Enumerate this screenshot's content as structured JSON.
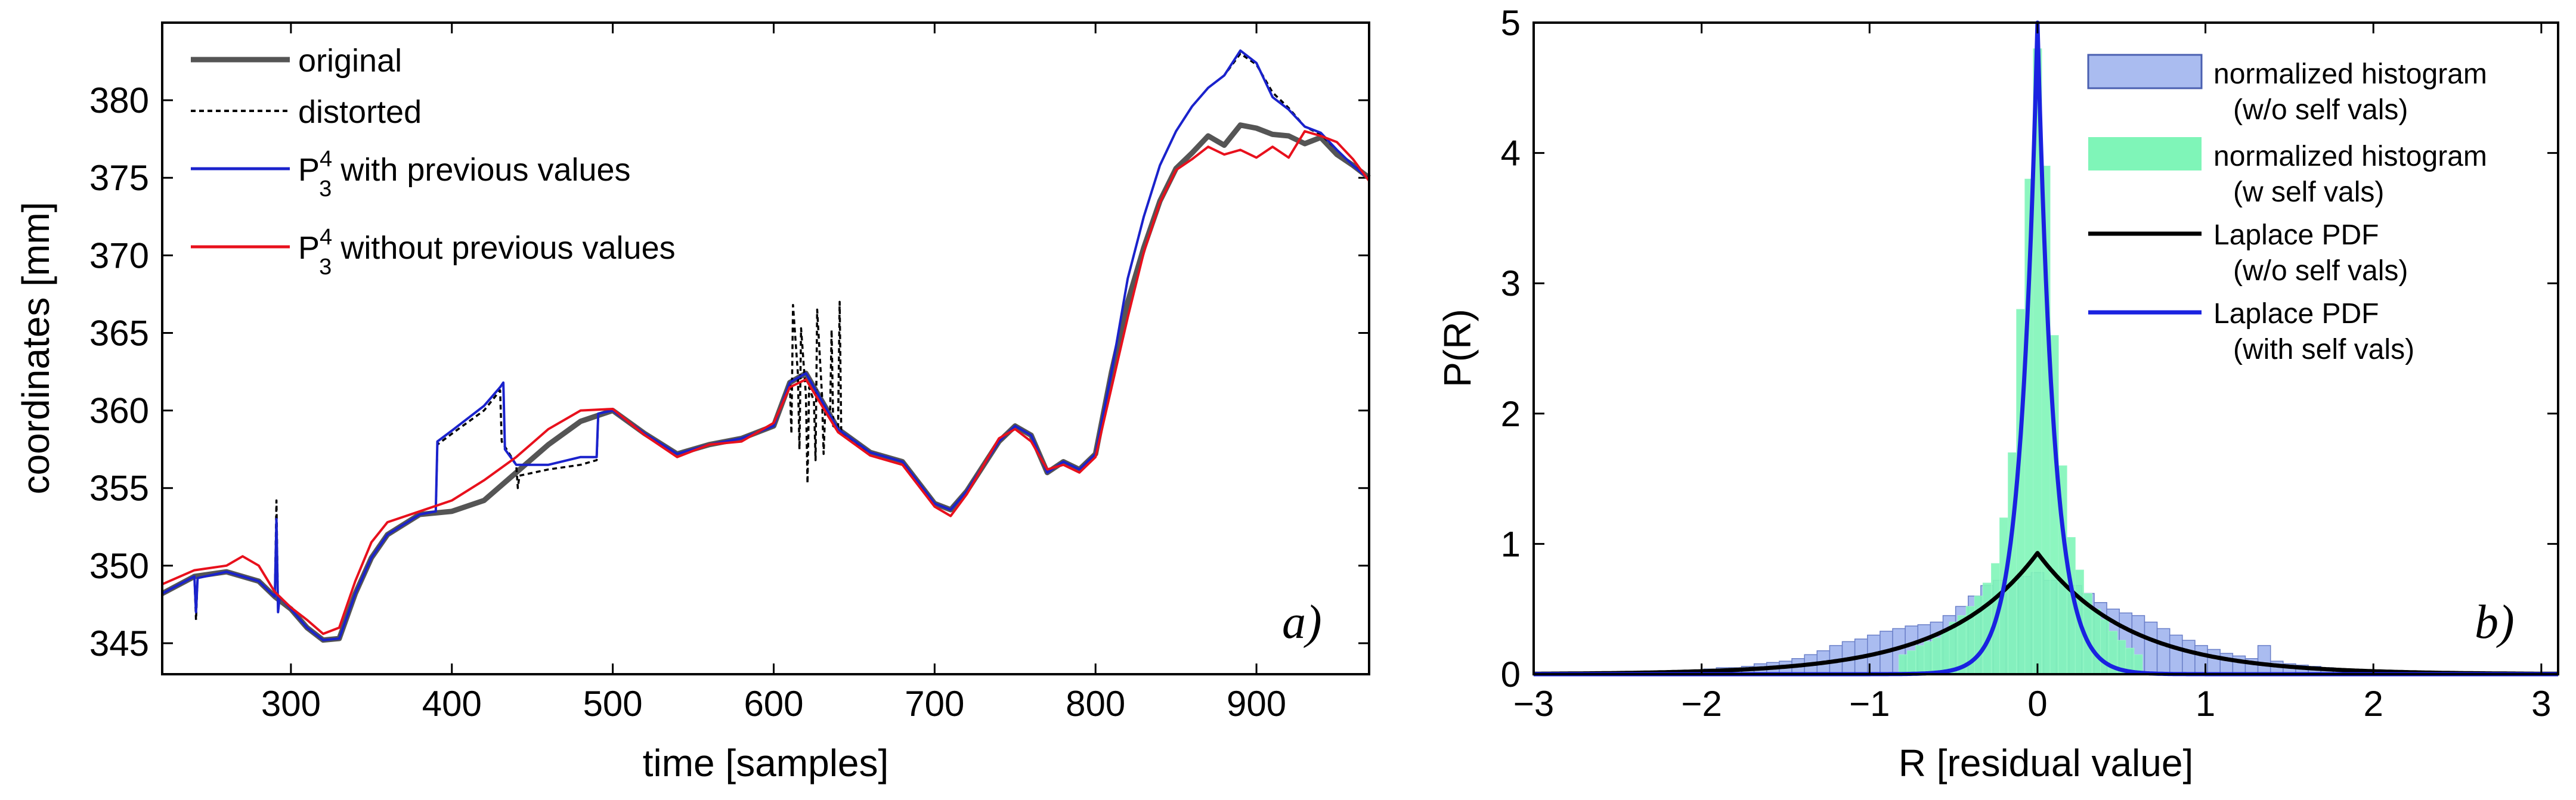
{
  "chart_data": [
    {
      "type": "line",
      "xlabel": "time [samples]",
      "ylabel": "coordinates [mm]",
      "xlim": [
        220,
        970
      ],
      "ylim": [
        343,
        385
      ],
      "xticks": [
        300,
        400,
        500,
        600,
        700,
        800,
        900
      ],
      "yticks": [
        345,
        350,
        355,
        360,
        365,
        370,
        375,
        380
      ],
      "panel_label": "a)",
      "legend_position": "top-left",
      "legend": [
        {
          "label": "original",
          "sup": "",
          "sub": ""
        },
        {
          "label": "distorted",
          "sup": "",
          "sub": ""
        },
        {
          "label": "P",
          "sup": "4",
          "sub": "3",
          "suffix": " with previous values"
        },
        {
          "label": "P",
          "sup": "4",
          "sub": "3",
          "suffix": " without previous values"
        }
      ],
      "series": [
        {
          "name": "original",
          "color": "#555555",
          "style": "solid",
          "x": [
            220,
            240,
            260,
            280,
            290,
            300,
            310,
            320,
            330,
            340,
            350,
            360,
            380,
            400,
            420,
            440,
            460,
            480,
            500,
            520,
            540,
            560,
            580,
            600,
            610,
            620,
            630,
            640,
            660,
            680,
            700,
            710,
            720,
            740,
            750,
            760,
            770,
            780,
            790,
            800,
            810,
            820,
            830,
            840,
            850,
            860,
            870,
            880,
            890,
            900,
            910,
            920,
            930,
            940,
            950,
            960,
            970
          ],
          "y": [
            348.2,
            349.3,
            349.6,
            349.0,
            348.0,
            347.2,
            346.0,
            345.2,
            345.3,
            348.2,
            350.5,
            352.0,
            353.3,
            353.5,
            354.2,
            356.0,
            357.8,
            359.3,
            360.0,
            358.5,
            357.2,
            357.8,
            358.2,
            359.0,
            361.8,
            362.4,
            360.6,
            358.8,
            357.3,
            356.7,
            354.0,
            353.6,
            354.8,
            358.0,
            359.0,
            358.4,
            356.0,
            356.7,
            356.2,
            357.2,
            362.5,
            367.0,
            370.5,
            373.5,
            375.6,
            376.6,
            377.7,
            377.1,
            378.4,
            378.2,
            377.8,
            377.7,
            377.2,
            377.6,
            376.5,
            375.8,
            375.0
          ]
        },
        {
          "name": "distorted",
          "color": "#000000",
          "style": "dashed",
          "x": [
            220,
            240,
            241,
            242,
            260,
            280,
            290,
            291,
            292,
            293,
            300,
            310,
            320,
            330,
            340,
            350,
            360,
            380,
            390,
            391,
            400,
            420,
            430,
            431,
            440,
            441,
            442,
            460,
            480,
            490,
            491,
            500,
            520,
            540,
            560,
            580,
            600,
            610,
            611,
            612,
            615,
            616,
            617,
            620,
            621,
            622,
            625,
            626,
            627,
            630,
            631,
            632,
            635,
            636,
            637,
            640,
            641,
            642,
            660,
            680,
            700,
            710,
            720,
            740,
            750,
            760,
            770,
            780,
            790,
            800,
            810,
            820,
            830,
            840,
            850,
            860,
            870,
            880,
            890,
            900,
            910,
            920,
            930,
            940,
            950,
            960,
            970
          ],
          "y": [
            348.2,
            349.3,
            346.5,
            349.2,
            349.6,
            349.0,
            348.0,
            354.2,
            347.0,
            348.0,
            347.2,
            346.0,
            345.2,
            345.3,
            348.2,
            350.5,
            352.0,
            353.3,
            353.5,
            357.8,
            358.5,
            360.0,
            361.3,
            358.0,
            356.5,
            355.0,
            355.8,
            356.2,
            356.5,
            356.8,
            359.8,
            360.0,
            358.5,
            357.2,
            357.8,
            358.2,
            359.0,
            361.8,
            358.5,
            366.8,
            362.4,
            357.5,
            365.3,
            361.0,
            355.3,
            361.5,
            360.6,
            356.8,
            366.5,
            361.0,
            357.2,
            360.0,
            359.4,
            365.2,
            359.0,
            358.8,
            367.0,
            358.5,
            357.3,
            356.7,
            354.0,
            353.6,
            354.8,
            358.0,
            359.0,
            358.4,
            356.0,
            356.7,
            356.2,
            357.2,
            362.5,
            368.5,
            372.5,
            375.8,
            378.0,
            379.6,
            380.8,
            381.6,
            383.0,
            382.3,
            380.5,
            379.5,
            378.3,
            377.8,
            376.8,
            375.8,
            375.0
          ]
        },
        {
          "name": "P34 with previous values",
          "color": "#1a22cc",
          "style": "solid",
          "x": [
            220,
            240,
            241,
            242,
            260,
            280,
            290,
            291,
            292,
            293,
            300,
            310,
            320,
            330,
            340,
            350,
            360,
            380,
            390,
            391,
            400,
            420,
            430,
            432,
            433,
            440,
            460,
            480,
            490,
            491,
            500,
            520,
            540,
            560,
            580,
            600,
            610,
            620,
            630,
            640,
            660,
            680,
            700,
            710,
            720,
            740,
            750,
            760,
            770,
            780,
            790,
            800,
            810,
            820,
            830,
            840,
            850,
            860,
            870,
            880,
            890,
            900,
            910,
            920,
            930,
            940,
            950,
            960,
            970
          ],
          "y": [
            348.2,
            349.3,
            347.0,
            349.2,
            349.6,
            349.0,
            348.0,
            353.0,
            347.0,
            348.0,
            347.2,
            346.0,
            345.2,
            345.3,
            348.2,
            350.5,
            352.0,
            353.3,
            353.5,
            358.0,
            358.7,
            360.3,
            361.5,
            361.8,
            357.5,
            356.5,
            356.5,
            357.0,
            357.0,
            359.8,
            360.0,
            358.5,
            357.2,
            357.8,
            358.2,
            359.0,
            361.8,
            362.4,
            360.6,
            358.8,
            357.3,
            356.7,
            354.0,
            353.6,
            354.8,
            358.0,
            359.0,
            358.4,
            356.0,
            356.7,
            356.2,
            357.2,
            362.5,
            368.5,
            372.5,
            375.8,
            378.0,
            379.6,
            380.8,
            381.6,
            383.2,
            382.4,
            380.2,
            379.4,
            378.3,
            377.9,
            376.8,
            375.8,
            374.9
          ]
        },
        {
          "name": "P34 without previous values",
          "color": "#e8101c",
          "style": "solid",
          "x": [
            220,
            240,
            260,
            270,
            280,
            290,
            300,
            310,
            320,
            330,
            340,
            350,
            360,
            380,
            400,
            420,
            440,
            460,
            480,
            500,
            520,
            540,
            560,
            580,
            600,
            610,
            620,
            630,
            640,
            660,
            680,
            700,
            710,
            720,
            740,
            750,
            760,
            770,
            780,
            790,
            800,
            810,
            820,
            830,
            840,
            850,
            860,
            870,
            880,
            890,
            900,
            910,
            920,
            930,
            940,
            950,
            960,
            970
          ],
          "y": [
            348.8,
            349.7,
            350.0,
            350.6,
            350.0,
            348.3,
            347.3,
            346.5,
            345.6,
            346.0,
            349.0,
            351.5,
            352.8,
            353.5,
            354.2,
            355.5,
            357.0,
            358.8,
            360.0,
            360.1,
            358.4,
            357.0,
            357.8,
            358.0,
            359.2,
            361.5,
            362.0,
            360.3,
            358.6,
            357.1,
            356.5,
            353.8,
            353.2,
            354.6,
            358.2,
            358.8,
            358.0,
            356.2,
            356.5,
            356.0,
            357.0,
            361.5,
            366.0,
            370.2,
            373.4,
            375.5,
            376.2,
            377.0,
            376.5,
            376.8,
            376.3,
            377.0,
            376.3,
            378.0,
            377.7,
            377.3,
            376.2,
            374.8
          ]
        }
      ]
    },
    {
      "type": "histogram",
      "xlabel": "R [residual value]",
      "ylabel": "P(R)",
      "xlim": [
        -3,
        3.1
      ],
      "ylim": [
        0,
        5
      ],
      "xticks": [
        -3,
        -2,
        -1,
        0,
        1,
        2,
        3
      ],
      "yticks": [
        0,
        1,
        2,
        3,
        4,
        5
      ],
      "panel_label": "b)",
      "legend_position": "top-right",
      "legend": [
        {
          "line1": "normalized histogram",
          "line2": "(w/o self vals)",
          "kind": "patch",
          "color": "#aabcf0",
          "edge": "#4a5fb0"
        },
        {
          "line1": "normalized histogram",
          "line2": "(w self vals)",
          "kind": "patch",
          "color": "#7ff5b8",
          "edge": "#7ff5b8"
        },
        {
          "line1": "Laplace PDF",
          "line2": "(w/o self vals)",
          "kind": "line",
          "color": "#000000"
        },
        {
          "line1": "Laplace PDF",
          "line2": "(with self vals)",
          "kind": "line",
          "color": "#1a22e0"
        }
      ],
      "histogram_without_self": {
        "bin_width": 0.075,
        "centers": [
          -2.175,
          -2.1,
          -2.025,
          -1.95,
          -1.875,
          -1.8,
          -1.725,
          -1.65,
          -1.575,
          -1.5,
          -1.425,
          -1.35,
          -1.275,
          -1.2,
          -1.125,
          -1.05,
          -0.975,
          -0.9,
          -0.825,
          -0.75,
          -0.675,
          -0.6,
          -0.525,
          -0.45,
          -0.375,
          -0.3,
          -0.225,
          -0.15,
          -0.075,
          0.0,
          0.075,
          0.15,
          0.225,
          0.3,
          0.375,
          0.45,
          0.525,
          0.6,
          0.675,
          0.75,
          0.825,
          0.9,
          0.975,
          1.05,
          1.125,
          1.2,
          1.275,
          1.35,
          1.425,
          1.5,
          1.575,
          1.65,
          1.725,
          1.8,
          1.875,
          1.95,
          2.025,
          2.1
        ],
        "values": [
          0.02,
          0.03,
          0.03,
          0.04,
          0.05,
          0.05,
          0.06,
          0.08,
          0.09,
          0.1,
          0.12,
          0.15,
          0.18,
          0.22,
          0.25,
          0.27,
          0.3,
          0.33,
          0.35,
          0.37,
          0.38,
          0.4,
          0.45,
          0.52,
          0.6,
          0.68,
          0.72,
          0.7,
          0.75,
          0.78,
          0.72,
          0.7,
          0.68,
          0.62,
          0.55,
          0.5,
          0.47,
          0.45,
          0.4,
          0.35,
          0.3,
          0.26,
          0.22,
          0.19,
          0.16,
          0.14,
          0.12,
          0.22,
          0.1,
          0.08,
          0.07,
          0.06,
          0.05,
          0.04,
          0.04,
          0.03,
          0.03,
          0.02
        ]
      },
      "histogram_with_self": {
        "bin_width": 0.05,
        "centers": [
          -0.8,
          -0.75,
          -0.7,
          -0.65,
          -0.6,
          -0.55,
          -0.5,
          -0.45,
          -0.4,
          -0.35,
          -0.3,
          -0.25,
          -0.2,
          -0.15,
          -0.1,
          -0.05,
          0.0,
          0.05,
          0.1,
          0.15,
          0.2,
          0.25,
          0.3,
          0.35,
          0.4,
          0.45,
          0.5,
          0.55,
          0.6
        ],
        "values": [
          0.15,
          0.18,
          0.22,
          0.25,
          0.28,
          0.33,
          0.4,
          0.45,
          0.52,
          0.6,
          0.7,
          0.85,
          1.2,
          1.7,
          2.8,
          3.8,
          4.8,
          3.9,
          2.6,
          1.6,
          1.05,
          0.8,
          0.62,
          0.5,
          0.42,
          0.33,
          0.26,
          0.2,
          0.15
        ]
      },
      "pdf_without_self": {
        "mu": 0,
        "b": 0.54,
        "peak": 0.93
      },
      "pdf_with_self": {
        "mu": 0,
        "b": 0.1,
        "peak": 5.0
      }
    }
  ]
}
